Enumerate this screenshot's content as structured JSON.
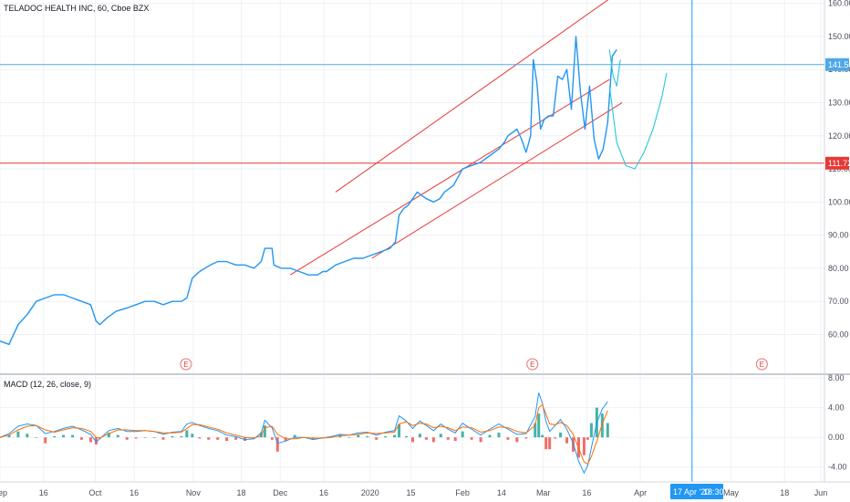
{
  "chart_data": [
    {
      "type": "line",
      "title": "TELADOC HEALTH INC, 60, Cboe BZX",
      "y_ticks": [
        "60.00",
        "70.00",
        "80.00",
        "90.00",
        "100.00",
        "110.00",
        "120.00",
        "130.00",
        "140.00",
        "150.00",
        "160.00"
      ],
      "ylim": [
        48,
        161
      ],
      "x_ticks": [
        "Sep",
        "16",
        "Oct",
        "16",
        "Nov",
        "18",
        "Dec",
        "16",
        "2020",
        "15",
        "Feb",
        "14",
        "Mar",
        "16",
        "Apr",
        "May",
        "18",
        "Jun"
      ],
      "x_tick_index": [
        0,
        48,
        105,
        148,
        213,
        266,
        309,
        357,
        408,
        453,
        510,
        553,
        599,
        647,
        706,
        806,
        865,
        905
      ],
      "x_count": 906,
      "grid": true,
      "series": [
        {
          "color": "#2196f3",
          "x": [
            0,
            10,
            20,
            30,
            40,
            50,
            60,
            70,
            80,
            90,
            100,
            106,
            110,
            118,
            128,
            140,
            150,
            160,
            170,
            180,
            190,
            200,
            206,
            212,
            220,
            232,
            240,
            250,
            260,
            270,
            280,
            288,
            292,
            300,
            302,
            310,
            320,
            330,
            340,
            350,
            356,
            360,
            370,
            380,
            390,
            400,
            410,
            420,
            430,
            436,
            440,
            445,
            450,
            455,
            460,
            465,
            470,
            478,
            485,
            490,
            500,
            510,
            520,
            530,
            540,
            550,
            556,
            560,
            570,
            575,
            580,
            585,
            588,
            592,
            596,
            600,
            605,
            610,
            615,
            620,
            625,
            630,
            635,
            640,
            645,
            650,
            655,
            660,
            665,
            670,
            675,
            680
          ],
          "values": [
            58,
            57,
            63,
            66,
            70,
            71,
            72,
            72,
            71,
            70,
            69,
            64,
            63,
            65,
            67,
            68,
            69,
            70,
            70,
            69,
            70,
            70,
            71,
            77,
            79,
            81,
            82,
            82,
            81,
            81,
            80,
            82,
            86,
            86,
            81,
            80,
            80,
            79,
            78,
            78,
            79,
            79,
            81,
            82,
            83,
            83,
            84,
            85,
            86,
            88,
            96,
            98,
            99,
            101,
            103,
            102,
            101,
            100,
            101,
            103,
            105,
            110,
            111,
            112,
            114,
            116,
            118,
            120,
            122,
            119,
            115,
            120,
            143,
            136,
            122,
            125,
            126,
            126,
            138,
            137,
            140,
            128,
            150,
            133,
            122,
            135,
            119,
            113,
            116,
            124,
            144,
            146
          ]
        },
        {
          "name": "",
          "color": "#26c6da",
          "x": [
            672,
            680,
            690,
            700,
            710,
            720,
            730,
            735
          ],
          "values": [
            135,
            118,
            111,
            110,
            115,
            122,
            132,
            139
          ]
        },
        {
          "name": "",
          "color": "#26c6da",
          "x": [
            672,
            676,
            680,
            684
          ],
          "values": [
            146,
            138,
            135,
            143
          ]
        }
      ],
      "trend_lines": [
        {
          "color": "#e53935",
          "x": [
            370,
            696
          ],
          "values": [
            103,
            166
          ]
        },
        {
          "color": "#e53935",
          "x": [
            320,
            672
          ],
          "values": [
            78,
            137
          ]
        },
        {
          "color": "#e53935",
          "x": [
            410,
            686
          ],
          "values": [
            83,
            130
          ]
        }
      ],
      "h_lines": [
        {
          "value": 141.5,
          "color": "#4fa8e8",
          "label": "141.50"
        },
        {
          "value": 111.72,
          "color": "#e53935",
          "label": "111.72"
        }
      ],
      "v_line": {
        "x": 763,
        "color": "#2196f3"
      },
      "earnings_markers": {
        "x": [
          205,
          587,
          840
        ],
        "label": "E"
      },
      "crosshair_date_label": "17 Apr '20",
      "crosshair_time_label": "18:30"
    },
    {
      "type": "bar",
      "title": "MACD (12, 26, close, 9)",
      "y_ticks": [
        "-4.00",
        "0.00",
        "4.00",
        "8.00"
      ],
      "ylim": [
        -6,
        8.5
      ],
      "x": [
        0,
        10,
        20,
        30,
        40,
        50,
        60,
        70,
        80,
        90,
        100,
        106,
        110,
        120,
        130,
        140,
        150,
        160,
        170,
        180,
        190,
        200,
        206,
        212,
        220,
        230,
        240,
        250,
        260,
        270,
        280,
        288,
        292,
        300,
        306,
        315,
        325,
        335,
        345,
        355,
        365,
        375,
        385,
        395,
        405,
        415,
        425,
        435,
        440,
        448,
        455,
        463,
        470,
        478,
        486,
        494,
        502,
        510,
        520,
        530,
        540,
        550,
        560,
        570,
        580,
        590,
        594,
        598,
        602,
        606,
        612,
        618,
        625,
        632,
        638,
        644,
        648,
        652,
        658,
        664,
        670
      ],
      "macd": [
        0,
        0.5,
        1.5,
        1.8,
        1.6,
        0.5,
        0.8,
        1.2,
        1.5,
        1.0,
        0.4,
        -0.6,
        -0.2,
        0.9,
        1.2,
        0.8,
        0.8,
        0.9,
        0.8,
        0.4,
        0.7,
        0.8,
        1.8,
        2.0,
        1.6,
        1.2,
        0.9,
        0.3,
        0.1,
        -0.3,
        -0.2,
        0.6,
        2.3,
        1.3,
        -0.8,
        -0.5,
        0,
        0,
        -0.3,
        -0.1,
        0.1,
        0.4,
        0.3,
        0.6,
        0.7,
        0.3,
        0.7,
        0.9,
        2.9,
        2.2,
        1.2,
        2.2,
        1.6,
        0.9,
        1.8,
        1.1,
        0.6,
        1.9,
        1.1,
        0.3,
        1.1,
        1.8,
        1.1,
        0.4,
        0.5,
        2.8,
        6.0,
        4.6,
        2.1,
        0.8,
        1.6,
        2.4,
        1.1,
        -0.8,
        -3.2,
        -4.8,
        -3.8,
        -1.4,
        2.0,
        3.8,
        4.8
      ],
      "signal": [
        0,
        0.3,
        1.0,
        1.5,
        1.6,
        1.0,
        0.7,
        1.0,
        1.3,
        1.2,
        0.8,
        0,
        -0.1,
        0.5,
        1.0,
        1.0,
        0.9,
        0.9,
        0.8,
        0.6,
        0.6,
        0.7,
        1.2,
        1.7,
        1.7,
        1.4,
        1.1,
        0.6,
        0.3,
        0,
        -0.1,
        0.2,
        1.3,
        1.5,
        0.4,
        -0.2,
        -0.2,
        0,
        -0.1,
        -0.1,
        0,
        0.2,
        0.3,
        0.4,
        0.6,
        0.5,
        0.6,
        0.7,
        1.8,
        2.1,
        1.6,
        1.9,
        1.8,
        1.3,
        1.5,
        1.3,
        0.9,
        1.4,
        1.3,
        0.7,
        0.9,
        1.4,
        1.3,
        0.8,
        0.6,
        1.6,
        4.0,
        4.4,
        3.1,
        1.8,
        1.7,
        2.0,
        1.6,
        0.4,
        -1.5,
        -3.3,
        -3.6,
        -2.6,
        -0.5,
        1.8,
        3.6
      ],
      "series_colors": {
        "macd": "#2196f3",
        "signal": "#ff6d00",
        "hist_up": "#26a69a",
        "hist_down": "#ef5350"
      }
    }
  ]
}
